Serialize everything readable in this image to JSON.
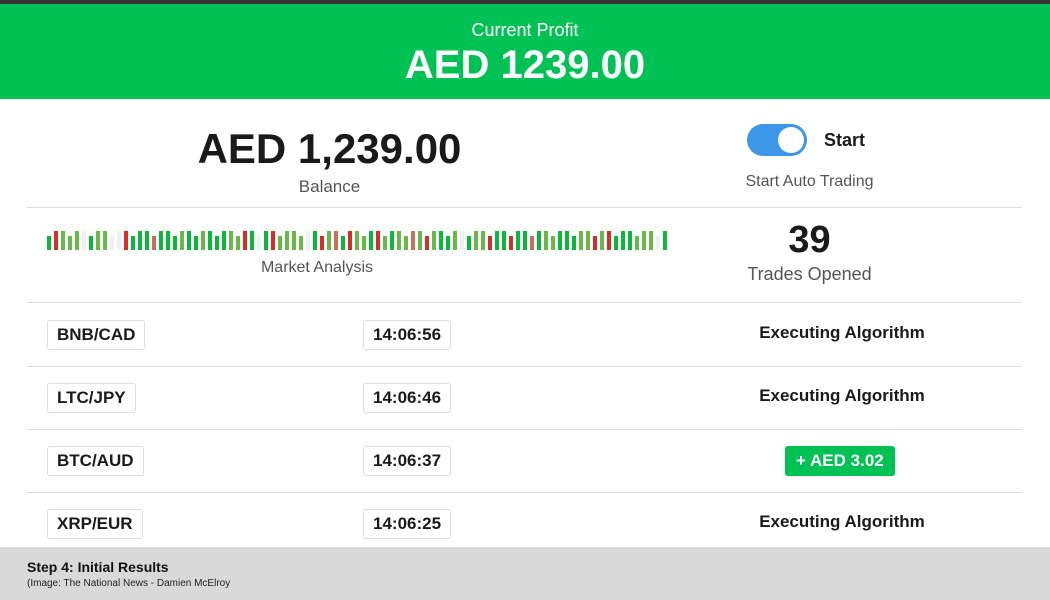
{
  "header": {
    "label": "Current Profit",
    "value": "AED 1239.00"
  },
  "balance": {
    "amount": "AED 1,239.00",
    "label": "Balance"
  },
  "auto_trading": {
    "toggle_on": true,
    "toggle_label": "Start",
    "label": "Start Auto Trading",
    "toggle_color": "#3d97e8"
  },
  "market": {
    "label": "Market Analysis",
    "bars": "grllleglleergggpggglgglgggllrgegrllllegrlpgrllgrlgllplrlgglegllrggrggpgllgggllrlrgggllleg"
  },
  "trades": {
    "count": "39",
    "label": "Trades Opened"
  },
  "rows": [
    {
      "pair": "BNB/CAD",
      "time": "14:06:56",
      "status": "Executing Algorithm"
    },
    {
      "pair": "LTC/JPY",
      "time": "14:06:46",
      "status": "Executing Algorithm"
    },
    {
      "pair": "BTC/AUD",
      "time": "14:06:37",
      "profit": "+ AED 3.02"
    },
    {
      "pair": "XRP/EUR",
      "time": "14:06:25",
      "status": "Executing Algorithm"
    }
  ],
  "caption": {
    "title": "Step 4: Initial Results",
    "source": "(Image:  The National News - Damien McElroy"
  },
  "colors": {
    "accent": "#00c254",
    "bar_green": "#0bb83b",
    "bar_light_green": "#6ab84a",
    "bar_red": "#d0302a",
    "bar_salmon": "#c87060"
  }
}
